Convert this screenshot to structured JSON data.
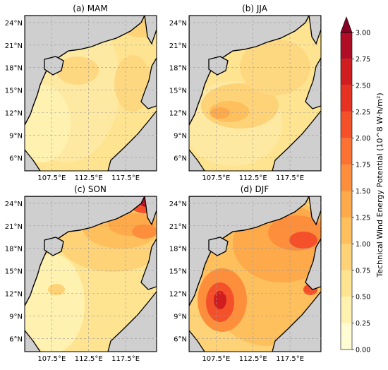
{
  "panels": [
    {
      "key": "mam",
      "title": "(a) MAM"
    },
    {
      "key": "jja",
      "title": "(b) JJA"
    },
    {
      "key": "son",
      "title": "(c) SON"
    },
    {
      "key": "djf",
      "title": "(d) DJF"
    }
  ],
  "lat_ticks": [
    "24°N",
    "21°N",
    "18°N",
    "15°N",
    "12°N",
    "9°N",
    "6°N"
  ],
  "lon_ticks": [
    "107.5°E",
    "112.5°E",
    "117.5°E"
  ],
  "colorbar": {
    "label": "Technical Wind Energy Potential (10^8 W·h/m²)",
    "ticks": [
      "0.00",
      "0.25",
      "0.50",
      "0.75",
      "1.00",
      "1.25",
      "1.50",
      "1.75",
      "2.00",
      "2.25",
      "2.50",
      "2.75",
      "3.00"
    ],
    "colors": [
      "#fffbd2",
      "#fff1b0",
      "#fee491",
      "#fed276",
      "#febf5d",
      "#fea94a",
      "#fd8f3c",
      "#fb7232",
      "#f4512a",
      "#e53222",
      "#d01e20",
      "#b00d26",
      "#870026"
    ],
    "extend": "max"
  },
  "colors": {
    "land": "#cfcfcf",
    "coast": "#000000",
    "grid": "#9a9a9a"
  }
}
